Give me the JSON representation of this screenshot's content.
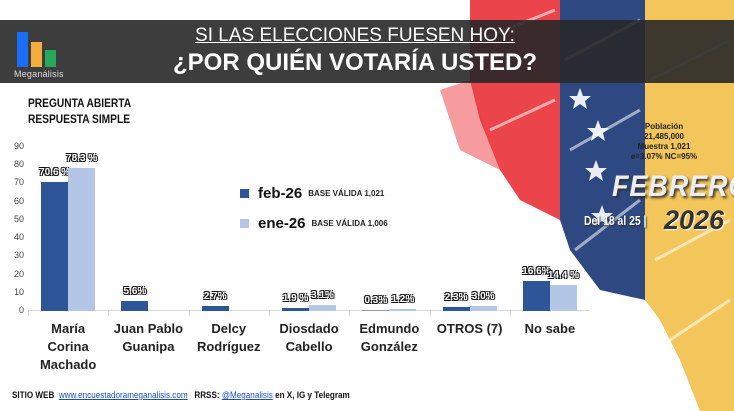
{
  "header": {
    "logo_name": "Meganálisis",
    "title_line1": "SI LAS ELECCIONES FUESEN HOY:",
    "title_line2": "¿POR QUIÉN VOTARÍA USTED?"
  },
  "question_type": {
    "line1": "PREGUNTA  ABIERTA",
    "line2": "RESPUESTA SIMPLE"
  },
  "survey_info": {
    "population_label": "Población",
    "population_value": "21,485,000",
    "sample": "Muestra 1,021",
    "margin": "e=3.07%  NC=95%",
    "month": "FEBRERO",
    "dates": "Del 18 al 25 |",
    "year": "2026"
  },
  "legend": [
    {
      "name": "feb-26",
      "base": "BASE VÁLIDA 1,021",
      "color": "#2e5597"
    },
    {
      "name": "ene-26",
      "base": "BASE VÁLIDA 1,006",
      "color": "#b3c6e6"
    }
  ],
  "footer": {
    "site_label": "SITIO WEB",
    "site_url": "www.encuestadorameganalisis.com",
    "rrss_label": "RRSS:",
    "handle": "@Meganalisis",
    "networks": "en X, IG y Telegram"
  },
  "chart_data": {
    "type": "bar",
    "title": "¿POR QUIÉN VOTARÍA USTED?",
    "subtitle": "SI LAS ELECCIONES FUESEN HOY:",
    "xlabel": "",
    "ylabel": "",
    "ylim": [
      0,
      90
    ],
    "yticks": [
      0,
      10,
      20,
      30,
      40,
      50,
      60,
      70,
      80,
      90
    ],
    "grid": false,
    "legend_position": "inside-top-center",
    "categories": [
      "María Corina Machado",
      "Juan Pablo Guanipa",
      "Delcy Rodríguez",
      "Diosdado Cabello",
      "Edmundo González",
      "OTROS (7)",
      "No sabe"
    ],
    "category_lines": [
      [
        "María",
        "Corina",
        "Machado"
      ],
      [
        "Juan Pablo",
        "Guanipa"
      ],
      [
        "Delcy",
        "Rodríguez"
      ],
      [
        "Diosdado",
        "Cabello"
      ],
      [
        "Edmundo",
        "González"
      ],
      [
        "OTROS (7)"
      ],
      [
        "No sabe"
      ]
    ],
    "series": [
      {
        "name": "feb-26",
        "values": [
          70.6,
          5.6,
          2.7,
          1.9,
          0.3,
          2.3,
          16.6
        ],
        "labels": [
          "70.6 %",
          "5.6%",
          "2.7%",
          "1.9 %",
          "0.3%",
          "2.3%",
          "16.6%"
        ]
      },
      {
        "name": "ene-26",
        "values": [
          78.3,
          null,
          null,
          3.1,
          1.2,
          3.0,
          14.4
        ],
        "labels": [
          "78.3 %",
          "",
          "",
          "3.1%",
          "1.2%",
          "3.0%",
          "14.4 %"
        ]
      }
    ]
  }
}
